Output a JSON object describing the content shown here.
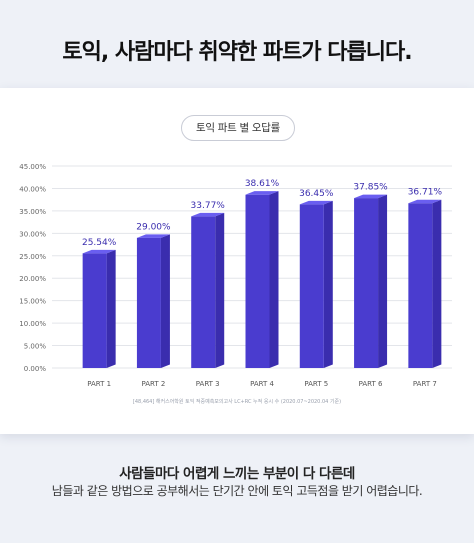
{
  "headline": "토익, 사람마다 취약한 파트가 다릅니다.",
  "pill_label": "토익 파트 별 오답률",
  "source_note": "[48,464] 해커스어학원 토익 적중예측모의고사 LC+RC 누적 응시 수 (2020.07~2020.04 기준)",
  "footer": {
    "title": "사람들마다 어렵게 느끼는 부분이 다 다른데",
    "subtitle": "남들과 같은 방법으로 공부해서는 단기간 안에 토익 고득점을 받기 어렵습니다."
  },
  "colors": {
    "bar_front": "#4a3ccf",
    "bar_side": "#3a2dae",
    "bar_top": "#6a5ef0",
    "value_label": "#3a2dae"
  },
  "chart_data": {
    "type": "bar",
    "title": "토익 파트 별 오답률",
    "categories": [
      "PART 1",
      "PART 2",
      "PART 3",
      "PART 4",
      "PART 5",
      "PART 6",
      "PART 7"
    ],
    "values": [
      25.54,
      29.0,
      33.77,
      38.61,
      36.45,
      37.85,
      36.71
    ],
    "value_labels": [
      "25.54%",
      "29.00%",
      "33.77%",
      "38.61%",
      "36.45%",
      "37.85%",
      "36.71%"
    ],
    "yticks": [
      "0.00%",
      "5.00%",
      "10.00%",
      "15.00%",
      "20.00%",
      "25.00%",
      "30.00%",
      "35.00%",
      "40.00%",
      "45.00%"
    ],
    "ylim": [
      0,
      45
    ],
    "grid": true,
    "xlabel": "",
    "ylabel": ""
  }
}
